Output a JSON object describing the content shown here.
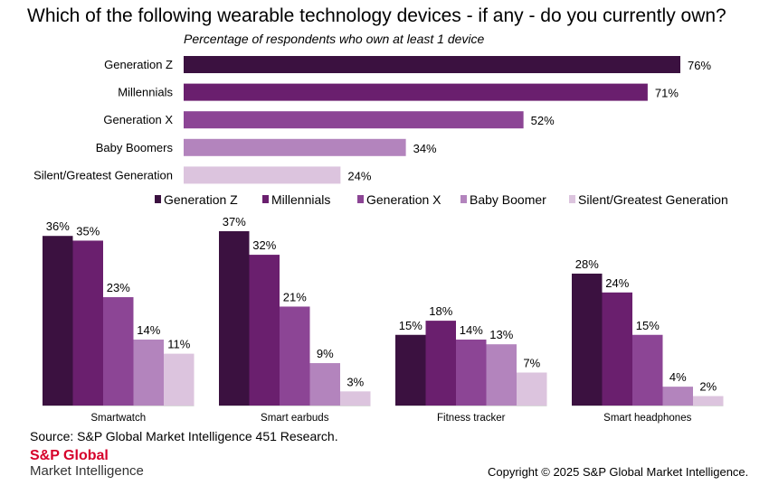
{
  "header": {
    "title": "Which of the following wearable technology devices - if any - do you currently own?",
    "subtitle": "Percentage of respondents who own at least 1 device"
  },
  "colors": {
    "generation_z": "#3b1140",
    "millennials": "#6a1f6e",
    "generation_x": "#8c4595",
    "baby_boomer": "#b384bd",
    "silent_greatest": "#dcc4de",
    "brand_red": "#d6002a"
  },
  "chart_data": [
    {
      "type": "bar",
      "orientation": "horizontal",
      "title": "Percentage of respondents who own at least 1 device",
      "categories": [
        "Generation Z",
        "Millennials",
        "Generation X",
        "Baby Boomers",
        "Silent/Greatest Generation"
      ],
      "values": [
        76,
        71,
        52,
        34,
        24
      ],
      "value_labels": [
        "76%",
        "71%",
        "52%",
        "34%",
        "24%"
      ],
      "xlim": [
        0,
        100
      ],
      "grid": false
    },
    {
      "type": "bar",
      "orientation": "vertical",
      "categories": [
        "Smartwatch",
        "Smart earbuds",
        "Fitness tracker",
        "Smart headphones"
      ],
      "legend_position": "top",
      "series": [
        {
          "name": "Generation Z",
          "values": [
            36,
            37,
            15,
            28
          ],
          "labels": [
            "36%",
            "37%",
            "15%",
            "28%"
          ]
        },
        {
          "name": "Millennials",
          "values": [
            35,
            32,
            18,
            24
          ],
          "labels": [
            "35%",
            "32%",
            "18%",
            "24%"
          ]
        },
        {
          "name": "Generation X",
          "values": [
            23,
            21,
            14,
            15
          ],
          "labels": [
            "23%",
            "21%",
            "14%",
            "15%"
          ]
        },
        {
          "name": "Baby Boomer",
          "values": [
            14,
            9,
            13,
            4
          ],
          "labels": [
            "14%",
            "9%",
            "13%",
            "4%"
          ]
        },
        {
          "name": "Silent/Greatest Generation",
          "values": [
            11,
            3,
            7,
            2
          ],
          "labels": [
            "11%",
            "3%",
            "7%",
            "2%"
          ]
        }
      ],
      "ylim": [
        0,
        40
      ],
      "grid": false
    }
  ],
  "footer": {
    "source": "Source: S&P Global Market Intelligence 451 Research.",
    "logo_brand": "S&P Global",
    "logo_sub": "Market Intelligence",
    "copyright": "Copyright © 2025 S&P Global Market Intelligence."
  }
}
